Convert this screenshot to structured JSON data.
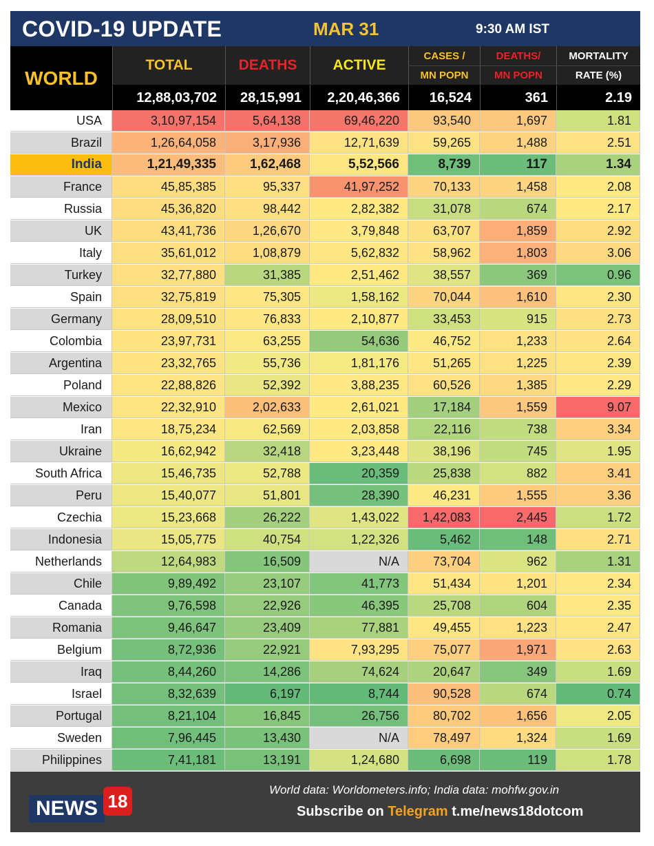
{
  "header": {
    "title": "COVID-19 UPDATE",
    "date": "MAR 31",
    "time": "9:30 AM IST",
    "world_label": "WORLD"
  },
  "columns": [
    {
      "label": "TOTAL",
      "color": "#f6c12a"
    },
    {
      "label": "DEATHS",
      "color": "#e8232a"
    },
    {
      "label": "ACTIVE",
      "color": "#f6e51a"
    },
    {
      "label_top": "CASES /",
      "label_bottom": "MN POPN",
      "color": "#f6c12a"
    },
    {
      "label_top": "DEATHS/",
      "label_bottom": "MN POPN",
      "color": "#e8232a"
    },
    {
      "label_top": "MORTALITY",
      "label_bottom": "RATE (%)",
      "color": "#ffffff"
    }
  ],
  "world": [
    "12,88,03,702",
    "28,15,991",
    "2,20,46,366",
    "16,524",
    "361",
    "2.19"
  ],
  "chart_data": {
    "type": "table",
    "columns": [
      "TOTAL",
      "DEATHS",
      "ACTIVE",
      "CASES / MN POPN",
      "DEATHS/ MN POPN",
      "MORTALITY RATE (%)"
    ],
    "rows": [
      {
        "country": "USA",
        "values": [
          "3,10,97,154",
          "5,64,138",
          "69,46,220",
          "93,540",
          "1,697",
          "1.81"
        ],
        "colors": [
          "#f4736a",
          "#f5736a",
          "#f5766a",
          "#fcc77f",
          "#fcc77f",
          "#cfe07f"
        ]
      },
      {
        "country": "Brazil",
        "values": [
          "1,26,64,058",
          "3,17,936",
          "12,71,639",
          "59,265",
          "1,488",
          "2.51"
        ],
        "colors": [
          "#fbb37a",
          "#fbaf78",
          "#fde283",
          "#fde283",
          "#fdd380",
          "#fde283"
        ]
      },
      {
        "country": "India",
        "values": [
          "1,21,49,335",
          "1,62,468",
          "5,52,566",
          "8,739",
          "117",
          "1.34"
        ],
        "colors": [
          "#fcbc7b",
          "#fdca7e",
          "#fde783",
          "#6fbf7b",
          "#6cbd7a",
          "#aad27e"
        ]
      },
      {
        "country": "France",
        "values": [
          "45,85,385",
          "95,337",
          "41,97,252",
          "70,133",
          "1,458",
          "2.08"
        ],
        "colors": [
          "#fedd81",
          "#fee082",
          "#f89370",
          "#fdd580",
          "#fdd480",
          "#fee983"
        ]
      },
      {
        "country": "Russia",
        "values": [
          "45,36,820",
          "98,442",
          "2,82,382",
          "31,078",
          "674",
          "2.17"
        ],
        "colors": [
          "#fedd81",
          "#fee082",
          "#fee983",
          "#c7dd80",
          "#b8d77f",
          "#fee983"
        ]
      },
      {
        "country": "UK",
        "values": [
          "43,41,736",
          "1,26,670",
          "3,79,848",
          "63,707",
          "1,859",
          "2.92"
        ],
        "colors": [
          "#fedd81",
          "#fed880",
          "#fee883",
          "#fde082",
          "#fbae78",
          "#fedd81"
        ]
      },
      {
        "country": "Italy",
        "values": [
          "35,61,012",
          "1,08,879",
          "5,62,832",
          "58,962",
          "1,803",
          "3.06"
        ],
        "colors": [
          "#fedf82",
          "#fedd81",
          "#fee783",
          "#fee283",
          "#fbb179",
          "#fdd981"
        ]
      },
      {
        "country": "Turkey",
        "values": [
          "32,77,880",
          "31,385",
          "2,51,462",
          "38,557",
          "369",
          "0.96"
        ],
        "colors": [
          "#fee082",
          "#b8d77f",
          "#fee983",
          "#dfe582",
          "#8bc77c",
          "#7bc27b"
        ]
      },
      {
        "country": "Spain",
        "values": [
          "32,75,819",
          "75,305",
          "1,58,162",
          "70,044",
          "1,610",
          "2.30"
        ],
        "colors": [
          "#fee082",
          "#fee683",
          "#ebe783",
          "#fdd580",
          "#fcc17c",
          "#fee683"
        ]
      },
      {
        "country": "Germany",
        "values": [
          "28,09,510",
          "76,833",
          "2,10,877",
          "33,453",
          "915",
          "2.73"
        ],
        "colors": [
          "#fee282",
          "#fee683",
          "#fee983",
          "#cfe080",
          "#d8e381",
          "#fde082"
        ]
      },
      {
        "country": "Colombia",
        "values": [
          "23,97,731",
          "63,255",
          "54,636",
          "46,752",
          "1,233",
          "2.64"
        ],
        "colors": [
          "#fee383",
          "#fde983",
          "#95ca7c",
          "#fde983",
          "#fde182",
          "#fee283"
        ]
      },
      {
        "country": "Argentina",
        "values": [
          "23,32,765",
          "55,736",
          "1,81,176",
          "51,265",
          "1,225",
          "2.39"
        ],
        "colors": [
          "#fee383",
          "#f1e983",
          "#f5e983",
          "#fee683",
          "#fee183",
          "#fee683"
        ]
      },
      {
        "country": "Poland",
        "values": [
          "22,88,826",
          "52,392",
          "3,88,235",
          "60,526",
          "1,385",
          "2.29"
        ],
        "colors": [
          "#fee483",
          "#e9e683",
          "#fee883",
          "#fee183",
          "#fdd982",
          "#fee883"
        ]
      },
      {
        "country": "Mexico",
        "values": [
          "22,32,910",
          "2,02,633",
          "2,61,021",
          "17,184",
          "1,559",
          "9.07"
        ],
        "colors": [
          "#fee483",
          "#fcc07b",
          "#fee983",
          "#a4cf7e",
          "#fcc77e",
          "#f8696b"
        ]
      },
      {
        "country": "Iran",
        "values": [
          "18,75,234",
          "62,569",
          "2,03,858",
          "22,116",
          "738",
          "3.34"
        ],
        "colors": [
          "#fee783",
          "#f6e983",
          "#fee983",
          "#b2d57f",
          "#c4dc80",
          "#fdd17f"
        ]
      },
      {
        "country": "Ukraine",
        "values": [
          "16,62,942",
          "32,418",
          "3,23,448",
          "38,196",
          "745",
          "1.95"
        ],
        "colors": [
          "#f4e883",
          "#b7d67f",
          "#fee983",
          "#dde582",
          "#c4dc80",
          "#dfe582"
        ]
      },
      {
        "country": "South Africa",
        "values": [
          "15,46,735",
          "52,788",
          "20,359",
          "25,838",
          "882",
          "3.41"
        ],
        "colors": [
          "#ece783",
          "#ebe783",
          "#69bc7a",
          "#bbd97f",
          "#d2e181",
          "#fdcf7f"
        ]
      },
      {
        "country": "Peru",
        "values": [
          "15,40,077",
          "51,801",
          "28,390",
          "46,231",
          "1,555",
          "3.36"
        ],
        "colors": [
          "#ece783",
          "#e7e683",
          "#75c07b",
          "#fde983",
          "#fccb7e",
          "#fdd17f"
        ]
      },
      {
        "country": "Czechia",
        "values": [
          "15,23,668",
          "26,222",
          "1,43,022",
          "1,42,083",
          "2,445",
          "1.72"
        ],
        "colors": [
          "#ebe783",
          "#a4cf7e",
          "#dee582",
          "#f8696b",
          "#f8696b",
          "#cbdf80"
        ]
      },
      {
        "country": "Indonesia",
        "values": [
          "15,05,775",
          "40,754",
          "1,22,326",
          "5,462",
          "148",
          "2.71"
        ],
        "colors": [
          "#e9e683",
          "#cee080",
          "#d2e181",
          "#69bc7a",
          "#6fbf7b",
          "#fee083"
        ]
      },
      {
        "country": "Netherlands",
        "values": [
          "12,64,983",
          "16,509",
          "N/A",
          "73,704",
          "962",
          "1.31"
        ],
        "colors": [
          "#bed980",
          "#86c67c",
          "#d9d9d9",
          "#fdd17f",
          "#dbe482",
          "#aad27e"
        ]
      },
      {
        "country": "Chile",
        "values": [
          "9,89,492",
          "23,107",
          "41,773",
          "51,434",
          "1,201",
          "2.34"
        ],
        "colors": [
          "#82c47c",
          "#97cb7d",
          "#82c57c",
          "#fde583",
          "#fee383",
          "#fee883"
        ]
      },
      {
        "country": "Canada",
        "values": [
          "9,76,598",
          "22,926",
          "46,395",
          "25,708",
          "604",
          "2.35"
        ],
        "colors": [
          "#80c37c",
          "#96ca7d",
          "#88c77c",
          "#bad87f",
          "#b0d47e",
          "#fee883"
        ]
      },
      {
        "country": "Romania",
        "values": [
          "9,46,647",
          "23,409",
          "77,881",
          "49,455",
          "1,223",
          "2.47"
        ],
        "colors": [
          "#7ec37b",
          "#98cb7d",
          "#aad17e",
          "#fee783",
          "#fee183",
          "#fee583"
        ]
      },
      {
        "country": "Belgium",
        "values": [
          "8,72,936",
          "22,921",
          "7,93,295",
          "75,077",
          "1,971",
          "2.63"
        ],
        "colors": [
          "#77c07b",
          "#96ca7d",
          "#fde383",
          "#fdcf7e",
          "#fba777",
          "#fee283"
        ]
      },
      {
        "country": "Iraq",
        "values": [
          "8,44,260",
          "14,286",
          "74,624",
          "20,647",
          "349",
          "1.69"
        ],
        "colors": [
          "#75c07b",
          "#7ec37c",
          "#a6d07e",
          "#aed37e",
          "#87c67c",
          "#c9de80"
        ]
      },
      {
        "country": "Israel",
        "values": [
          "8,32,639",
          "6,197",
          "8,744",
          "90,528",
          "674",
          "0.74"
        ],
        "colors": [
          "#74bf7b",
          "#63ba79",
          "#63ba79",
          "#fcc07c",
          "#b8d77f",
          "#63ba79"
        ]
      },
      {
        "country": "Portugal",
        "values": [
          "8,21,104",
          "16,845",
          "26,756",
          "80,702",
          "1,656",
          "2.05"
        ],
        "colors": [
          "#73bf7b",
          "#88c67c",
          "#73bf7b",
          "#fdca7e",
          "#fcc27c",
          "#eee983"
        ]
      },
      {
        "country": "Sweden",
        "values": [
          "7,96,445",
          "13,430",
          "N/A",
          "78,497",
          "1,324",
          "1.69"
        ],
        "colors": [
          "#71be7b",
          "#7ac27b",
          "#d9d9d9",
          "#fdcc7e",
          "#fedb81",
          "#c9de80"
        ]
      },
      {
        "country": "Philippines",
        "values": [
          "7,41,181",
          "13,191",
          "1,24,680",
          "6,698",
          "119",
          "1.78"
        ],
        "colors": [
          "#6cbd7a",
          "#79c17b",
          "#d5e281",
          "#6cbd7a",
          "#6cbd7a",
          "#cfe081"
        ]
      }
    ]
  },
  "footer": {
    "logo_text": "NEWS",
    "logo_number": "18",
    "source": "World data: Worldometers.info; India data: mohfw.gov.in",
    "subscribe_prefix": "Subscribe on ",
    "subscribe_app": "Telegram",
    "subscribe_link": " t.me/news18dotcom"
  }
}
